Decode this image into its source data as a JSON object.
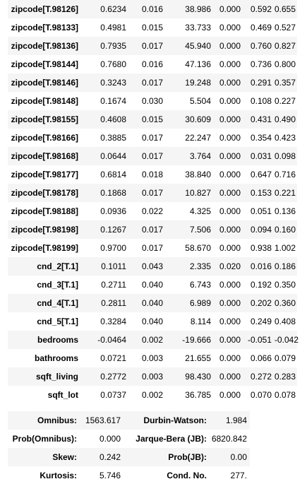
{
  "coef_rows": [
    {
      "name": "zipcode[T.98126]",
      "coef": "0.6234",
      "se": "0.016",
      "t": "38.986",
      "p": "0.000",
      "lo": "0.592",
      "hi": "0.655"
    },
    {
      "name": "zipcode[T.98133]",
      "coef": "0.4981",
      "se": "0.015",
      "t": "33.733",
      "p": "0.000",
      "lo": "0.469",
      "hi": "0.527"
    },
    {
      "name": "zipcode[T.98136]",
      "coef": "0.7935",
      "se": "0.017",
      "t": "45.940",
      "p": "0.000",
      "lo": "0.760",
      "hi": "0.827"
    },
    {
      "name": "zipcode[T.98144]",
      "coef": "0.7680",
      "se": "0.016",
      "t": "47.136",
      "p": "0.000",
      "lo": "0.736",
      "hi": "0.800"
    },
    {
      "name": "zipcode[T.98146]",
      "coef": "0.3243",
      "se": "0.017",
      "t": "19.248",
      "p": "0.000",
      "lo": "0.291",
      "hi": "0.357"
    },
    {
      "name": "zipcode[T.98148]",
      "coef": "0.1674",
      "se": "0.030",
      "t": "5.504",
      "p": "0.000",
      "lo": "0.108",
      "hi": "0.227"
    },
    {
      "name": "zipcode[T.98155]",
      "coef": "0.4608",
      "se": "0.015",
      "t": "30.609",
      "p": "0.000",
      "lo": "0.431",
      "hi": "0.490"
    },
    {
      "name": "zipcode[T.98166]",
      "coef": "0.3885",
      "se": "0.017",
      "t": "22.247",
      "p": "0.000",
      "lo": "0.354",
      "hi": "0.423"
    },
    {
      "name": "zipcode[T.98168]",
      "coef": "0.0644",
      "se": "0.017",
      "t": "3.764",
      "p": "0.000",
      "lo": "0.031",
      "hi": "0.098"
    },
    {
      "name": "zipcode[T.98177]",
      "coef": "0.6814",
      "se": "0.018",
      "t": "38.840",
      "p": "0.000",
      "lo": "0.647",
      "hi": "0.716"
    },
    {
      "name": "zipcode[T.98178]",
      "coef": "0.1868",
      "se": "0.017",
      "t": "10.827",
      "p": "0.000",
      "lo": "0.153",
      "hi": "0.221"
    },
    {
      "name": "zipcode[T.98188]",
      "coef": "0.0936",
      "se": "0.022",
      "t": "4.325",
      "p": "0.000",
      "lo": "0.051",
      "hi": "0.136"
    },
    {
      "name": "zipcode[T.98198]",
      "coef": "0.1267",
      "se": "0.017",
      "t": "7.506",
      "p": "0.000",
      "lo": "0.094",
      "hi": "0.160"
    },
    {
      "name": "zipcode[T.98199]",
      "coef": "0.9700",
      "se": "0.017",
      "t": "58.670",
      "p": "0.000",
      "lo": "0.938",
      "hi": "1.002"
    },
    {
      "name": "cnd_2[T.1]",
      "coef": "0.1011",
      "se": "0.043",
      "t": "2.335",
      "p": "0.020",
      "lo": "0.016",
      "hi": "0.186"
    },
    {
      "name": "cnd_3[T.1]",
      "coef": "0.2711",
      "se": "0.040",
      "t": "6.743",
      "p": "0.000",
      "lo": "0.192",
      "hi": "0.350"
    },
    {
      "name": "cnd_4[T.1]",
      "coef": "0.2811",
      "se": "0.040",
      "t": "6.989",
      "p": "0.000",
      "lo": "0.202",
      "hi": "0.360"
    },
    {
      "name": "cnd_5[T.1]",
      "coef": "0.3284",
      "se": "0.040",
      "t": "8.114",
      "p": "0.000",
      "lo": "0.249",
      "hi": "0.408"
    },
    {
      "name": "bedrooms",
      "coef": "-0.0464",
      "se": "0.002",
      "t": "-19.666",
      "p": "0.000",
      "lo": "-0.051",
      "hi": "-0.042"
    },
    {
      "name": "bathrooms",
      "coef": "0.0721",
      "se": "0.003",
      "t": "21.655",
      "p": "0.000",
      "lo": "0.066",
      "hi": "0.079"
    },
    {
      "name": "sqft_living",
      "coef": "0.2772",
      "se": "0.003",
      "t": "98.430",
      "p": "0.000",
      "lo": "0.272",
      "hi": "0.283"
    },
    {
      "name": "sqft_lot",
      "coef": "0.0737",
      "se": "0.002",
      "t": "36.785",
      "p": "0.000",
      "lo": "0.070",
      "hi": "0.078"
    }
  ],
  "stats_rows": [
    {
      "l1": "Omnibus:",
      "v1": "1563.617",
      "l2": "Durbin-Watson:",
      "v2": "1.984"
    },
    {
      "l1": "Prob(Omnibus):",
      "v1": "0.000",
      "l2": "Jarque-Bera (JB):",
      "v2": "6820.842"
    },
    {
      "l1": "Skew:",
      "v1": "0.242",
      "l2": "Prob(JB):",
      "v2": "0.00"
    },
    {
      "l1": "Kurtosis:",
      "v1": "5.746",
      "l2": "Cond. No.",
      "v2": "277."
    }
  ]
}
